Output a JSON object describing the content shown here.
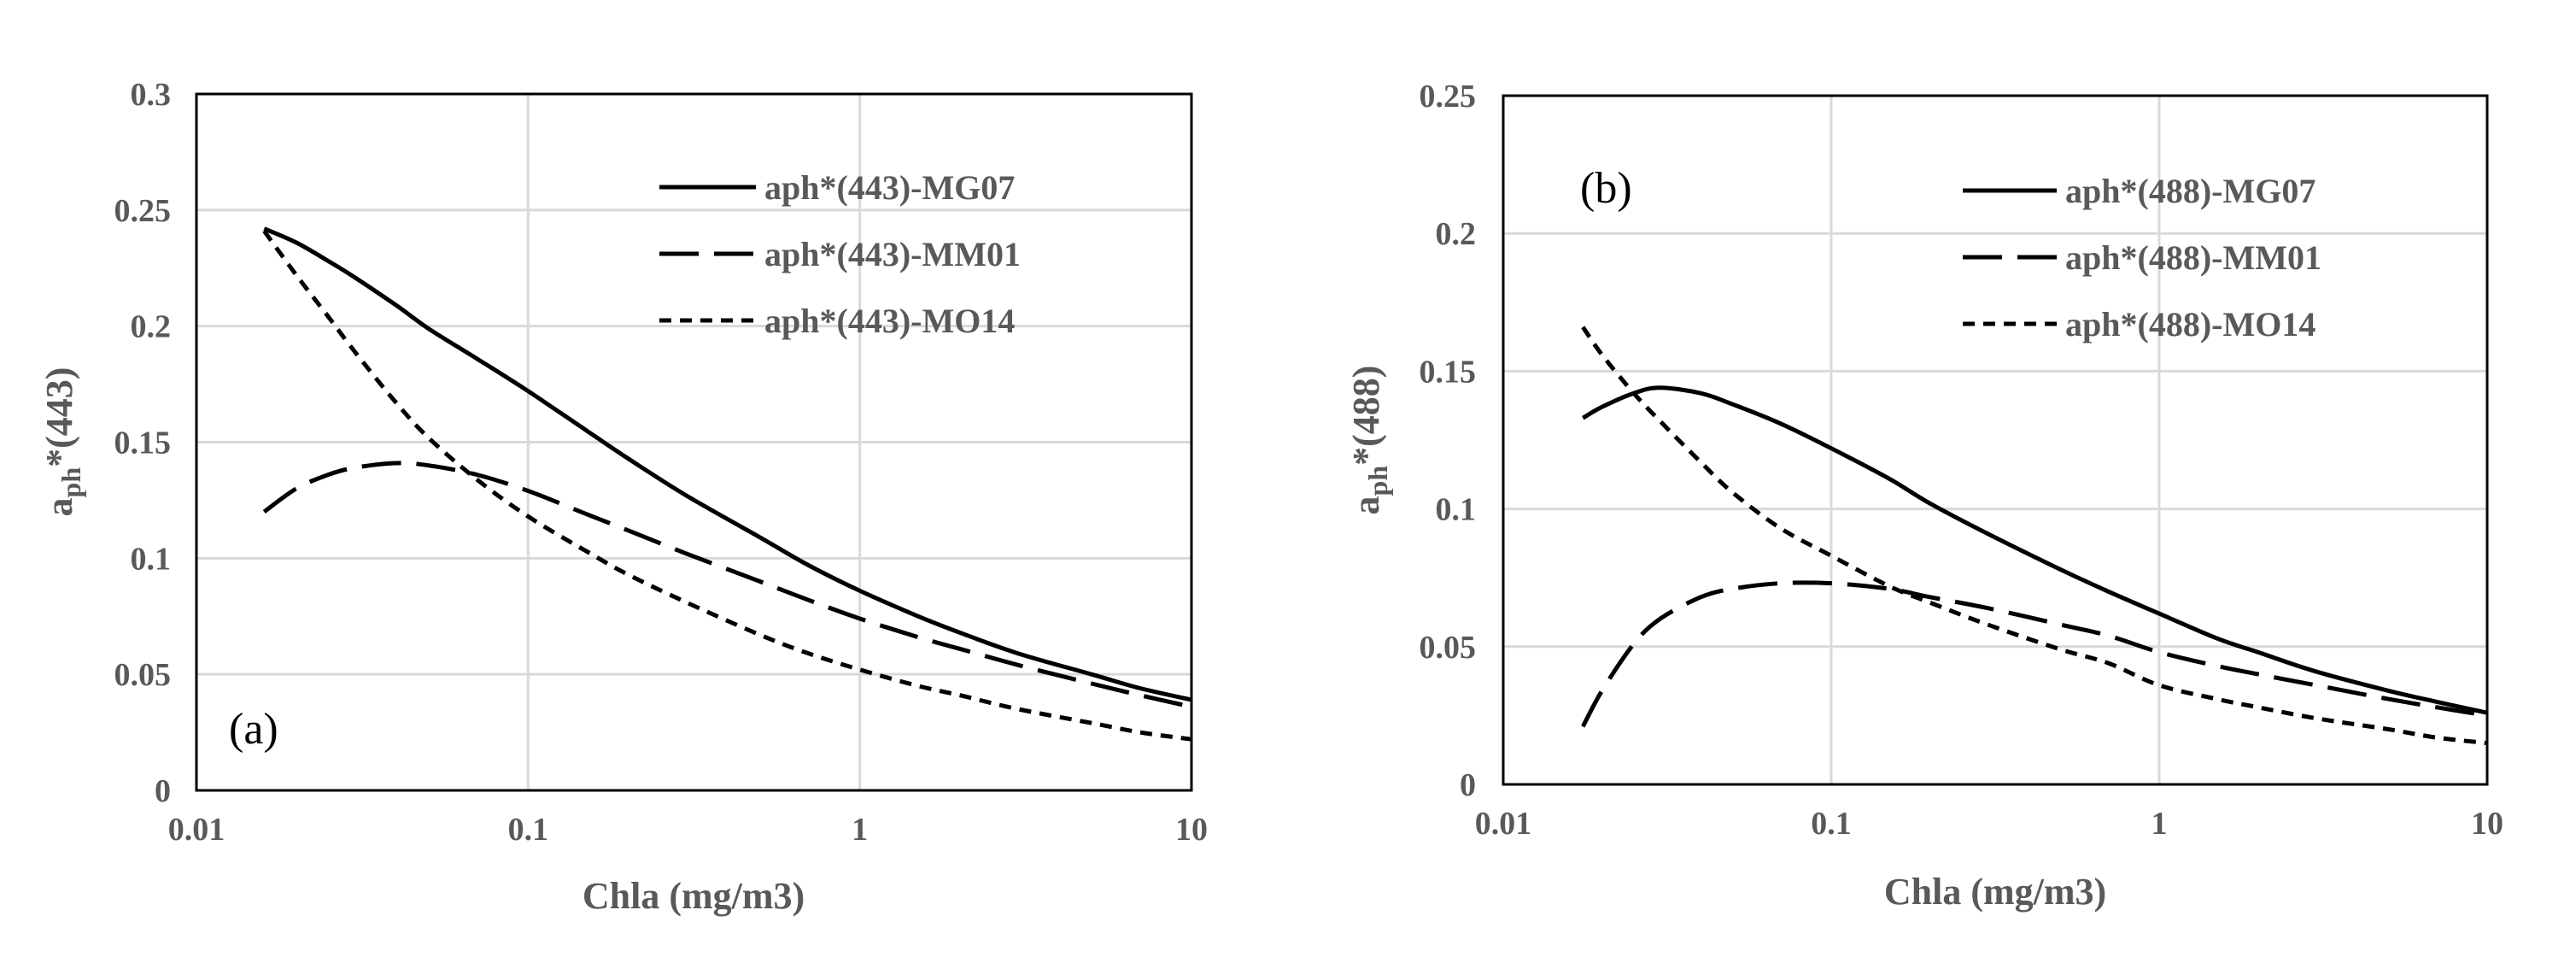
{
  "colors": {
    "text": "#595959",
    "line": "#000000",
    "grid": "#d9d9d9"
  },
  "chart_data": [
    {
      "type": "line",
      "panel_label": "(a)",
      "xlabel": "Chla  (mg/m3)",
      "ylabel_main": "a",
      "ylabel_sub": "ph",
      "ylabel_suffix": "*(443)",
      "x_scale": "log",
      "xlim": [
        0.01,
        10
      ],
      "ylim": [
        0,
        0.3
      ],
      "x_ticks": [
        0.01,
        0.1,
        1,
        10
      ],
      "x_tick_labels": [
        "0.01",
        "0.1",
        "1",
        "10"
      ],
      "y_ticks": [
        0,
        0.05,
        0.1,
        0.15,
        0.2,
        0.25,
        0.3
      ],
      "y_tick_labels": [
        "0",
        "0.05",
        "0.1",
        "0.15",
        "0.2",
        "0.25",
        "0.3"
      ],
      "grid": true,
      "legend_position": "top-right",
      "x": [
        0.016,
        0.02,
        0.025,
        0.03,
        0.04,
        0.05,
        0.07,
        0.1,
        0.15,
        0.2,
        0.3,
        0.5,
        0.7,
        1,
        1.5,
        2,
        3,
        5,
        7,
        10
      ],
      "series": [
        {
          "name": "aph*(443)-MG07",
          "dash": "solid",
          "values": [
            0.242,
            0.236,
            0.228,
            0.221,
            0.209,
            0.199,
            0.186,
            0.172,
            0.155,
            0.143,
            0.127,
            0.109,
            0.097,
            0.086,
            0.075,
            0.068,
            0.059,
            0.05,
            0.044,
            0.039
          ]
        },
        {
          "name": "aph*(443)-MM01",
          "dash": "long",
          "values": [
            0.12,
            0.13,
            0.136,
            0.139,
            0.141,
            0.14,
            0.136,
            0.129,
            0.119,
            0.112,
            0.102,
            0.09,
            0.082,
            0.074,
            0.066,
            0.061,
            0.054,
            0.046,
            0.041,
            0.036
          ]
        },
        {
          "name": "aph*(443)-MO14",
          "dash": "short",
          "values": [
            0.241,
            0.222,
            0.204,
            0.189,
            0.167,
            0.152,
            0.134,
            0.118,
            0.103,
            0.093,
            0.081,
            0.067,
            0.059,
            0.052,
            0.045,
            0.041,
            0.035,
            0.029,
            0.025,
            0.022
          ]
        }
      ]
    },
    {
      "type": "line",
      "panel_label": "(b)",
      "xlabel": "Chla  (mg/m3)",
      "ylabel_main": "a",
      "ylabel_sub": "ph",
      "ylabel_suffix": "*(488)",
      "x_scale": "log",
      "xlim": [
        0.01,
        10
      ],
      "ylim": [
        0,
        0.25
      ],
      "x_ticks": [
        0.01,
        0.1,
        1,
        10
      ],
      "x_tick_labels": [
        "0.01",
        "0.1",
        "1",
        "10"
      ],
      "y_ticks": [
        0,
        0.05,
        0.1,
        0.15,
        0.2,
        0.25
      ],
      "y_tick_labels": [
        "0",
        "0.05",
        "0.1",
        "0.15",
        "0.2",
        "0.25"
      ],
      "grid": true,
      "legend_position": "top-right",
      "x": [
        0.0175,
        0.02,
        0.025,
        0.03,
        0.04,
        0.05,
        0.07,
        0.1,
        0.15,
        0.2,
        0.3,
        0.5,
        0.7,
        1,
        1.5,
        2,
        3,
        5,
        7,
        10
      ],
      "series": [
        {
          "name": "aph*(488)-MG07",
          "dash": "solid",
          "values": [
            0.133,
            0.137,
            0.142,
            0.144,
            0.142,
            0.138,
            0.131,
            0.122,
            0.111,
            0.102,
            0.091,
            0.078,
            0.07,
            0.062,
            0.053,
            0.048,
            0.041,
            0.034,
            0.03,
            0.026
          ]
        },
        {
          "name": "aph*(488)-MM01",
          "dash": "long",
          "values": [
            0.021,
            0.034,
            0.051,
            0.06,
            0.068,
            0.071,
            0.073,
            0.073,
            0.071,
            0.068,
            0.064,
            0.058,
            0.054,
            0.048,
            0.043,
            0.04,
            0.036,
            0.031,
            0.028,
            0.025
          ]
        },
        {
          "name": "aph*(488)-MO14",
          "dash": "short",
          "values": [
            0.166,
            0.156,
            0.142,
            0.132,
            0.117,
            0.106,
            0.093,
            0.083,
            0.072,
            0.066,
            0.058,
            0.049,
            0.044,
            0.036,
            0.031,
            0.028,
            0.024,
            0.02,
            0.017,
            0.015
          ]
        }
      ]
    }
  ]
}
